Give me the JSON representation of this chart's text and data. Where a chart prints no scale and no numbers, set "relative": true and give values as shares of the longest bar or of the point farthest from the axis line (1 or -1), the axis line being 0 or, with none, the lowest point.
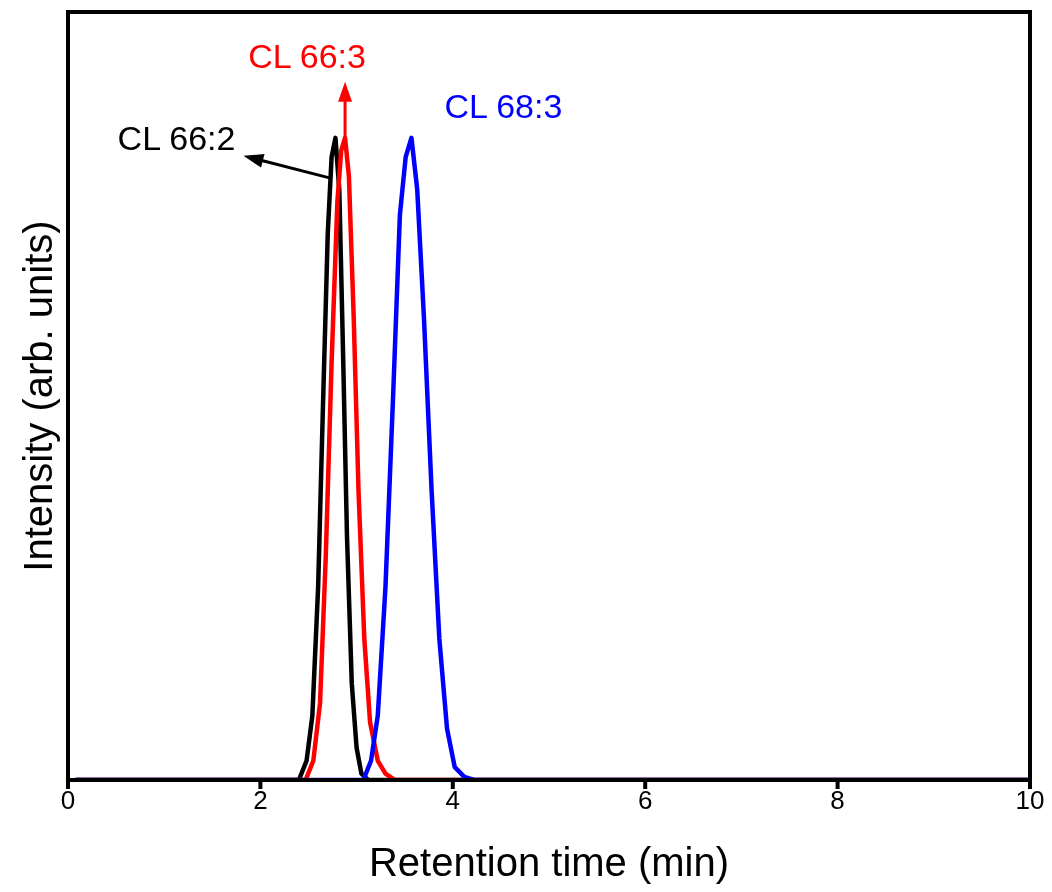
{
  "chart_data": {
    "type": "line",
    "relative": true,
    "xlabel": "Retention time (min)",
    "ylabel": "Intensity (arb. units)",
    "xlim": [
      0,
      10
    ],
    "xticks": [
      0,
      2,
      4,
      6,
      8,
      10
    ],
    "grid": false,
    "series": [
      {
        "name": "CL 66:2",
        "color": "#000000",
        "x": [
          0.08,
          2.4,
          2.48,
          2.54,
          2.6,
          2.65,
          2.7,
          2.74,
          2.78,
          2.82,
          2.86,
          2.9,
          2.95,
          3.0,
          3.05,
          3.12,
          10
        ],
        "values": [
          0,
          0,
          0.03,
          0.1,
          0.3,
          0.58,
          0.85,
          0.97,
          1,
          0.92,
          0.66,
          0.38,
          0.15,
          0.05,
          0.01,
          0,
          0
        ]
      },
      {
        "name": "CL 66:3",
        "color": "#ff0000",
        "x": [
          0.08,
          2.47,
          2.55,
          2.62,
          2.68,
          2.74,
          2.8,
          2.84,
          2.88,
          2.92,
          2.97,
          3.02,
          3.08,
          3.14,
          3.22,
          3.3,
          3.4,
          10
        ],
        "values": [
          0,
          0,
          0.03,
          0.12,
          0.35,
          0.65,
          0.9,
          0.98,
          1,
          0.94,
          0.72,
          0.45,
          0.22,
          0.09,
          0.03,
          0.01,
          0,
          0
        ]
      },
      {
        "name": "CL 68:3",
        "color": "#0000ff",
        "x": [
          0.08,
          3.07,
          3.15,
          3.22,
          3.3,
          3.38,
          3.45,
          3.51,
          3.57,
          3.63,
          3.7,
          3.78,
          3.86,
          3.94,
          4.02,
          4.12,
          4.22,
          10
        ],
        "values": [
          0,
          0,
          0.03,
          0.1,
          0.3,
          0.6,
          0.88,
          0.97,
          1,
          0.92,
          0.72,
          0.45,
          0.22,
          0.08,
          0.02,
          0.005,
          0,
          0
        ]
      }
    ]
  }
}
